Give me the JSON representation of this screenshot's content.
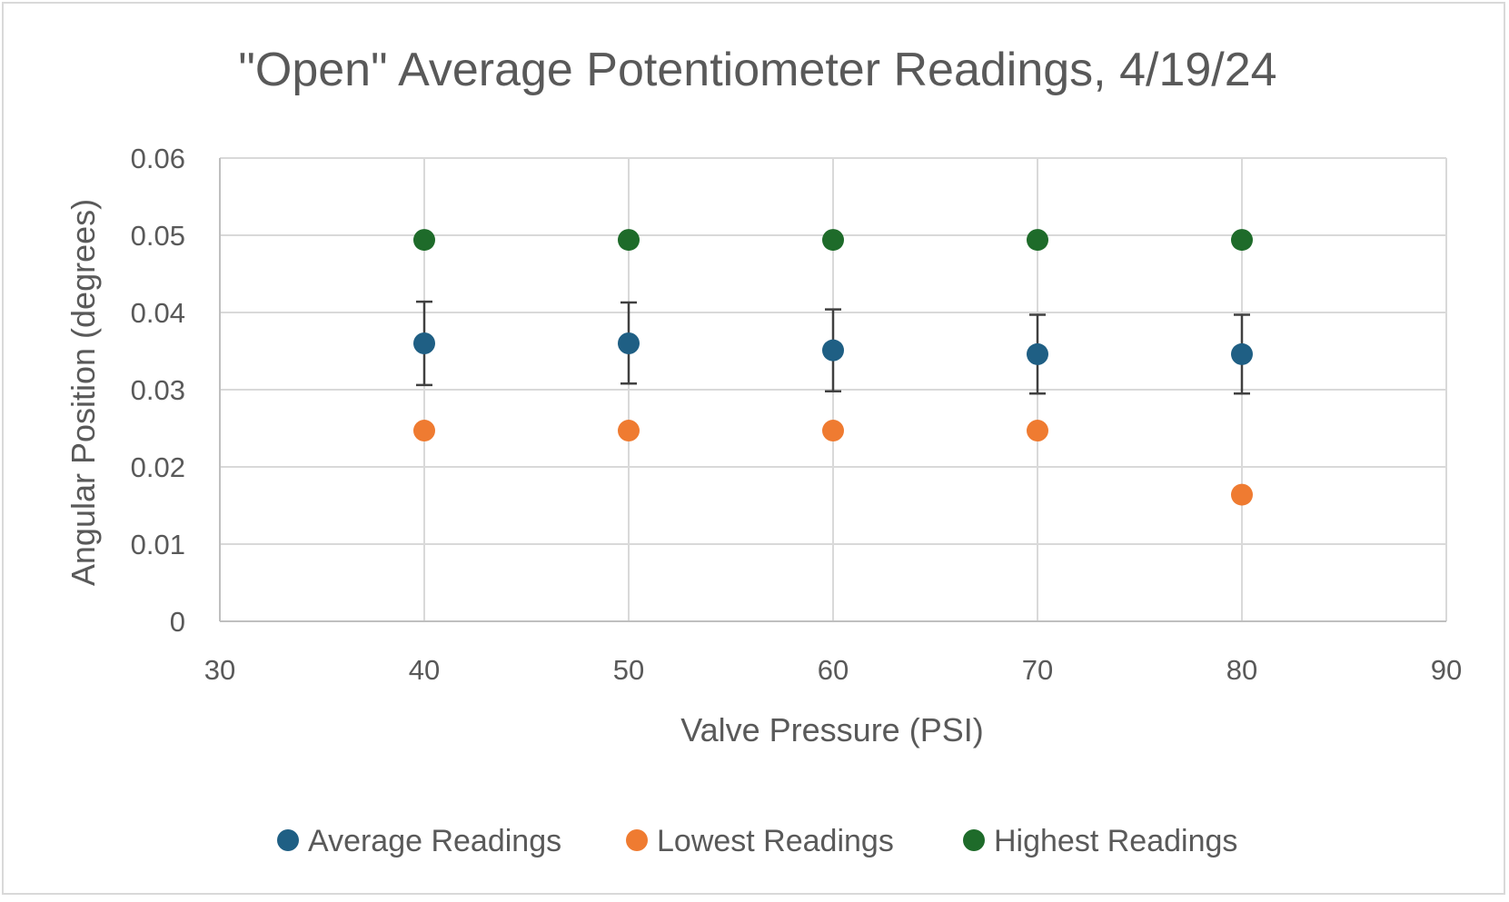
{
  "chart_data": {
    "type": "scatter",
    "title": "\"Open\" Average Potentiometer Readings, 4/19/24",
    "xlabel": "Valve Pressure (PSI)",
    "ylabel": "Angular Position (degrees)",
    "xlim": [
      30,
      90
    ],
    "ylim": [
      0,
      0.06
    ],
    "x_ticks": [
      "30",
      "40",
      "50",
      "60",
      "70",
      "80",
      "90"
    ],
    "y_ticks": [
      "0",
      "0.01",
      "0.02",
      "0.03",
      "0.04",
      "0.05",
      "0.06"
    ],
    "grid": true,
    "legend_position": "bottom",
    "series": [
      {
        "name": "Average Readings",
        "color": "#1f5f84",
        "x": [
          40,
          50,
          60,
          70,
          80
        ],
        "y": [
          0.036,
          0.036,
          0.0351,
          0.0346,
          0.0346
        ],
        "error_upper": [
          0.0414,
          0.0413,
          0.0404,
          0.0397,
          0.0397
        ],
        "error_lower": [
          0.0306,
          0.0308,
          0.0298,
          0.0295,
          0.0295
        ]
      },
      {
        "name": "Lowest Readings",
        "color": "#ef7b31",
        "x": [
          40,
          50,
          60,
          70,
          80
        ],
        "y": [
          0.0247,
          0.0247,
          0.0247,
          0.0247,
          0.0164
        ]
      },
      {
        "name": "Highest Readings",
        "color": "#1e6b2a",
        "x": [
          40,
          50,
          60,
          70,
          80
        ],
        "y": [
          0.0494,
          0.0494,
          0.0494,
          0.0494,
          0.0494
        ]
      }
    ]
  }
}
